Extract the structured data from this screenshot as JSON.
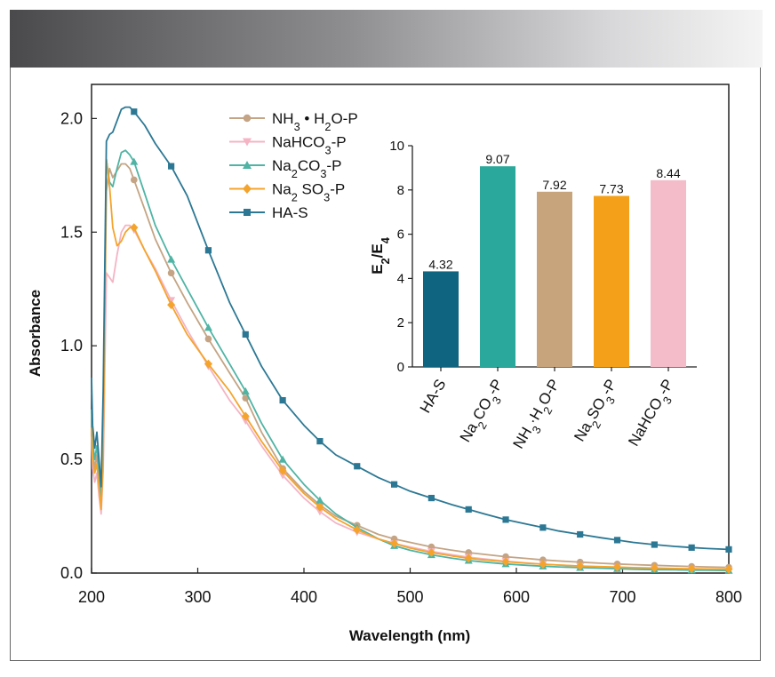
{
  "chart_data": [
    {
      "type": "line",
      "xlabel": "Wavelength (nm)",
      "ylabel": "Absorbance",
      "xlim": [
        200,
        800
      ],
      "ylim": [
        0.0,
        2.15
      ],
      "xticks": [
        200,
        300,
        400,
        500,
        600,
        700,
        800
      ],
      "yticks": [
        0.0,
        0.5,
        1.0,
        1.5,
        2.0
      ],
      "xtick_labels": [
        "200",
        "300",
        "400",
        "500",
        "600",
        "700",
        "800"
      ],
      "ytick_labels": [
        "0.0",
        "0.5",
        "1.0",
        "1.5",
        "2.0"
      ],
      "legend_position": "top-center",
      "series": [
        {
          "name": "NH3·H2O-P",
          "label_parts": [
            [
              "NH",
              "n"
            ],
            [
              "3",
              "sub"
            ],
            [
              " • ",
              "n"
            ],
            [
              "H",
              "n"
            ],
            [
              "2",
              "sub"
            ],
            [
              "O-P",
              "n"
            ]
          ],
          "color": "#c4a484",
          "marker": "circle",
          "x": [
            200,
            201,
            203,
            205,
            207,
            209,
            211,
            214,
            217,
            220,
            224,
            228,
            232,
            236,
            240,
            250,
            260,
            275,
            290,
            310,
            330,
            345,
            360,
            380,
            400,
            415,
            430,
            450,
            470,
            485,
            500,
            520,
            540,
            555,
            570,
            590,
            610,
            625,
            640,
            660,
            680,
            695,
            710,
            730,
            750,
            765,
            780,
            800
          ],
          "y": [
            0.7,
            0.55,
            0.46,
            0.52,
            0.4,
            0.3,
            0.55,
            1.68,
            1.78,
            1.74,
            1.77,
            1.8,
            1.8,
            1.78,
            1.73,
            1.6,
            1.47,
            1.32,
            1.19,
            1.03,
            0.88,
            0.77,
            0.62,
            0.46,
            0.36,
            0.3,
            0.25,
            0.21,
            0.17,
            0.15,
            0.135,
            0.115,
            0.1,
            0.09,
            0.082,
            0.072,
            0.064,
            0.058,
            0.053,
            0.048,
            0.043,
            0.04,
            0.037,
            0.034,
            0.031,
            0.029,
            0.027,
            0.025
          ]
        },
        {
          "name": "NaHCO3-P",
          "label_parts": [
            [
              "NaHCO",
              "n"
            ],
            [
              "3",
              "sub"
            ],
            [
              "-P",
              "n"
            ]
          ],
          "color": "#f4b4c4",
          "marker": "triangle-down",
          "x": [
            200,
            201,
            203,
            205,
            207,
            209,
            211,
            214,
            217,
            220,
            224,
            228,
            232,
            236,
            240,
            250,
            260,
            275,
            290,
            310,
            330,
            345,
            360,
            380,
            400,
            415,
            430,
            450,
            470,
            485,
            500,
            520,
            540,
            555,
            570,
            590,
            610,
            625,
            640,
            660,
            680,
            695,
            710,
            730,
            750,
            765,
            780,
            800
          ],
          "y": [
            0.6,
            0.46,
            0.4,
            0.44,
            0.34,
            0.26,
            0.45,
            1.32,
            1.3,
            1.28,
            1.4,
            1.5,
            1.53,
            1.53,
            1.51,
            1.42,
            1.34,
            1.2,
            1.07,
            0.91,
            0.76,
            0.67,
            0.56,
            0.43,
            0.33,
            0.27,
            0.22,
            0.18,
            0.15,
            0.13,
            0.115,
            0.095,
            0.08,
            0.07,
            0.062,
            0.052,
            0.044,
            0.039,
            0.035,
            0.03,
            0.026,
            0.023,
            0.021,
            0.018,
            0.016,
            0.015,
            0.014,
            0.013
          ]
        },
        {
          "name": "Na2CO3-P",
          "label_parts": [
            [
              "Na",
              "n"
            ],
            [
              "2",
              "sub"
            ],
            [
              "CO",
              "n"
            ],
            [
              "3",
              "sub"
            ],
            [
              "-P",
              "n"
            ]
          ],
          "color": "#4fb4a4",
          "marker": "triangle-up",
          "x": [
            200,
            201,
            203,
            205,
            207,
            209,
            211,
            214,
            217,
            220,
            224,
            228,
            232,
            236,
            240,
            250,
            260,
            275,
            290,
            310,
            330,
            345,
            360,
            380,
            400,
            415,
            430,
            450,
            470,
            485,
            500,
            520,
            540,
            555,
            570,
            590,
            610,
            625,
            640,
            660,
            680,
            695,
            710,
            730,
            750,
            765,
            780,
            800
          ],
          "y": [
            0.72,
            0.58,
            0.5,
            0.56,
            0.44,
            0.32,
            0.6,
            1.82,
            1.72,
            1.7,
            1.78,
            1.85,
            1.86,
            1.84,
            1.81,
            1.67,
            1.53,
            1.38,
            1.25,
            1.08,
            0.92,
            0.8,
            0.66,
            0.5,
            0.39,
            0.32,
            0.26,
            0.2,
            0.15,
            0.12,
            0.1,
            0.08,
            0.065,
            0.055,
            0.048,
            0.04,
            0.034,
            0.03,
            0.027,
            0.024,
            0.021,
            0.019,
            0.017,
            0.015,
            0.014,
            0.013,
            0.012,
            0.011
          ]
        },
        {
          "name": "Na2SO3-P",
          "label_parts": [
            [
              "Na",
              "n"
            ],
            [
              "2",
              "sub"
            ],
            [
              " SO",
              "n"
            ],
            [
              "3",
              "sub"
            ],
            [
              "-P",
              "n"
            ]
          ],
          "color": "#f4a42c",
          "marker": "diamond",
          "x": [
            200,
            201,
            203,
            205,
            207,
            209,
            211,
            214,
            217,
            220,
            224,
            228,
            232,
            236,
            240,
            250,
            260,
            275,
            290,
            310,
            330,
            345,
            360,
            380,
            400,
            415,
            430,
            450,
            470,
            485,
            500,
            520,
            540,
            555,
            570,
            590,
            610,
            625,
            640,
            660,
            680,
            695,
            710,
            730,
            750,
            765,
            780,
            800
          ],
          "y": [
            0.64,
            0.5,
            0.44,
            0.48,
            0.38,
            0.28,
            0.5,
            1.82,
            1.7,
            1.52,
            1.44,
            1.46,
            1.5,
            1.52,
            1.52,
            1.42,
            1.33,
            1.18,
            1.05,
            0.92,
            0.8,
            0.69,
            0.58,
            0.45,
            0.35,
            0.29,
            0.24,
            0.19,
            0.15,
            0.13,
            0.11,
            0.09,
            0.075,
            0.065,
            0.058,
            0.05,
            0.043,
            0.039,
            0.035,
            0.031,
            0.028,
            0.026,
            0.024,
            0.022,
            0.02,
            0.019,
            0.018,
            0.017
          ]
        },
        {
          "name": "HA-S",
          "label_parts": [
            [
              "HA-S",
              "n"
            ]
          ],
          "color": "#2c7894",
          "marker": "square",
          "x": [
            200,
            201,
            203,
            205,
            207,
            209,
            211,
            214,
            217,
            220,
            224,
            228,
            232,
            236,
            240,
            250,
            260,
            275,
            290,
            310,
            330,
            345,
            360,
            380,
            400,
            415,
            430,
            450,
            470,
            485,
            500,
            520,
            540,
            555,
            570,
            590,
            610,
            625,
            640,
            660,
            680,
            695,
            710,
            730,
            750,
            765,
            780,
            800
          ],
          "y": [
            0.86,
            0.65,
            0.55,
            0.62,
            0.5,
            0.38,
            0.8,
            1.9,
            1.93,
            1.94,
            1.99,
            2.04,
            2.05,
            2.05,
            2.03,
            1.97,
            1.89,
            1.79,
            1.66,
            1.42,
            1.19,
            1.05,
            0.91,
            0.76,
            0.65,
            0.58,
            0.52,
            0.47,
            0.42,
            0.39,
            0.36,
            0.33,
            0.3,
            0.28,
            0.26,
            0.235,
            0.215,
            0.2,
            0.185,
            0.17,
            0.155,
            0.145,
            0.135,
            0.125,
            0.117,
            0.112,
            0.108,
            0.104
          ]
        }
      ]
    },
    {
      "type": "bar",
      "title": "",
      "ylabel_parts": [
        [
          "E",
          "n"
        ],
        [
          "2",
          "sub"
        ],
        [
          "/E",
          "n"
        ],
        [
          "4",
          "sub"
        ]
      ],
      "ylim": [
        0,
        10
      ],
      "yticks": [
        0,
        2,
        4,
        6,
        8,
        10
      ],
      "ytick_labels": [
        "0",
        "2",
        "4",
        "6",
        "8",
        "10"
      ],
      "categories": [
        "HA-S",
        "Na2CO3-P",
        "NH3·H2O-P",
        "Na2SO3-P",
        "NaHCO3-P"
      ],
      "category_parts": [
        [
          [
            "HA-S",
            "n"
          ]
        ],
        [
          [
            "Na",
            "n"
          ],
          [
            "2",
            "sub"
          ],
          [
            "CO",
            "n"
          ],
          [
            "3",
            "sub"
          ],
          [
            "-P",
            "n"
          ]
        ],
        [
          [
            "NH",
            "n"
          ],
          [
            "3",
            "sub"
          ],
          [
            "·H",
            "n"
          ],
          [
            "2",
            "sub"
          ],
          [
            "O-P",
            "n"
          ]
        ],
        [
          [
            "Na",
            "n"
          ],
          [
            "2",
            "sub"
          ],
          [
            "SO",
            "n"
          ],
          [
            "3",
            "sub"
          ],
          [
            "-P",
            "n"
          ]
        ],
        [
          [
            "NaHCO",
            "n"
          ],
          [
            "3",
            "sub"
          ],
          [
            "-P",
            "n"
          ]
        ]
      ],
      "values": [
        4.32,
        9.07,
        7.92,
        7.73,
        8.44
      ],
      "value_labels": [
        "4.32",
        "9.07",
        "7.92",
        "7.73",
        "8.44"
      ],
      "colors": [
        "#0f6480",
        "#2aa89c",
        "#c8a47c",
        "#f4a018",
        "#f4bcc8"
      ]
    }
  ]
}
